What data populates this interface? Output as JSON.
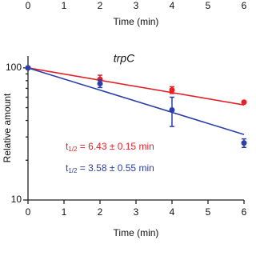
{
  "chart_data": {
    "type": "scatter",
    "title": "trpC",
    "xlabel": "Time (min)",
    "ylabel": "Relative amount",
    "log_y": true,
    "xlim": [
      0,
      6
    ],
    "xticks": [
      0,
      1,
      2,
      3,
      4,
      5,
      6
    ],
    "ylim": [
      10,
      123
    ],
    "yticks": [
      10,
      100
    ],
    "yminor": [
      20,
      30,
      40,
      50,
      60,
      70,
      80,
      90
    ],
    "top_axis": {
      "xlim": [
        0,
        6
      ],
      "xticks": [
        0,
        1,
        2,
        3,
        4,
        5,
        6
      ],
      "xlabel": "Time (min)"
    },
    "series": [
      {
        "name": "t1/2 = 6.43 ± 0.15 min",
        "color": "#e32226",
        "x": [
          0,
          2,
          4,
          6
        ],
        "values": [
          100,
          82,
          68,
          55
        ],
        "errors": [
          0,
          6,
          4,
          1
        ],
        "fit": {
          "x": [
            0,
            6
          ],
          "values": [
            100,
            52.4
          ]
        },
        "label": {
          "prefix": "t",
          "sub": "1/2",
          "text": " = 6.43 ± 0.15 min"
        }
      },
      {
        "name": "t1/2 = 3.58 ± 0.55 min",
        "color": "#2a3fa8",
        "x": [
          0,
          2,
          4,
          6
        ],
        "values": [
          100,
          76,
          48,
          27
        ],
        "errors": [
          0,
          5,
          12,
          2
        ],
        "fit": {
          "x": [
            0,
            6
          ],
          "values": [
            100,
            31.3
          ]
        },
        "label": {
          "prefix": "t",
          "sub": "1/2",
          "text": " = 3.58 ± 0.55 min"
        }
      }
    ]
  }
}
